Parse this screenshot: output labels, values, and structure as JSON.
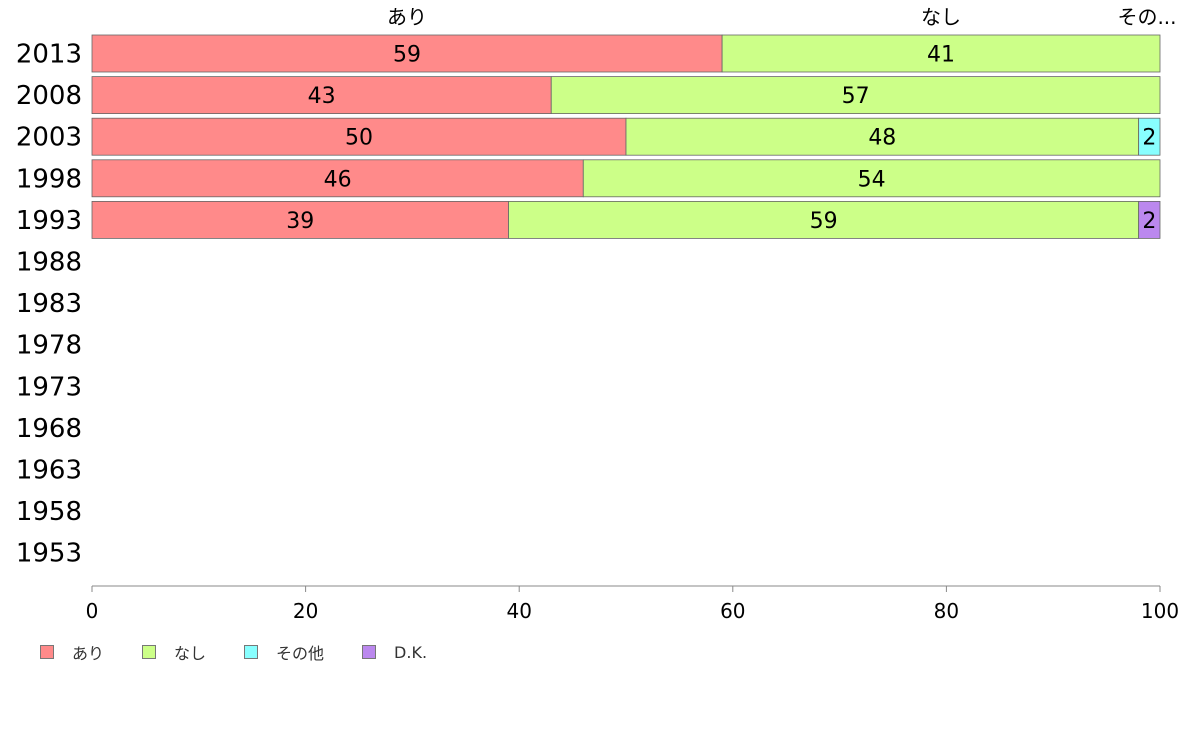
{
  "chart_data": {
    "type": "bar",
    "orientation": "horizontal",
    "stacked": true,
    "categories": [
      "2013",
      "2008",
      "2003",
      "1998",
      "1993",
      "1988",
      "1983",
      "1978",
      "1973",
      "1968",
      "1963",
      "1958",
      "1953"
    ],
    "series": [
      {
        "name": "あり",
        "color": "#ff8a8a",
        "values": [
          59,
          43,
          50,
          46,
          39,
          null,
          null,
          null,
          null,
          null,
          null,
          null,
          null
        ]
      },
      {
        "name": "なし",
        "color": "#ccff88",
        "values": [
          41,
          57,
          48,
          54,
          59,
          null,
          null,
          null,
          null,
          null,
          null,
          null,
          null
        ]
      },
      {
        "name": "その他",
        "color": "#88ffff",
        "values": [
          0,
          0,
          2,
          0,
          0,
          null,
          null,
          null,
          null,
          null,
          null,
          null,
          null
        ]
      },
      {
        "name": "D.K.",
        "color": "#bb88ee",
        "values": [
          0,
          0,
          0,
          0,
          2,
          null,
          null,
          null,
          null,
          null,
          null,
          null,
          null
        ]
      }
    ],
    "top_labels": [
      "あり",
      "なし",
      "その..."
    ],
    "xlim": [
      0,
      100
    ],
    "xticks": [
      "0",
      "20",
      "40",
      "60",
      "80",
      "100"
    ],
    "legend_position": "bottom-left",
    "grid": false
  }
}
